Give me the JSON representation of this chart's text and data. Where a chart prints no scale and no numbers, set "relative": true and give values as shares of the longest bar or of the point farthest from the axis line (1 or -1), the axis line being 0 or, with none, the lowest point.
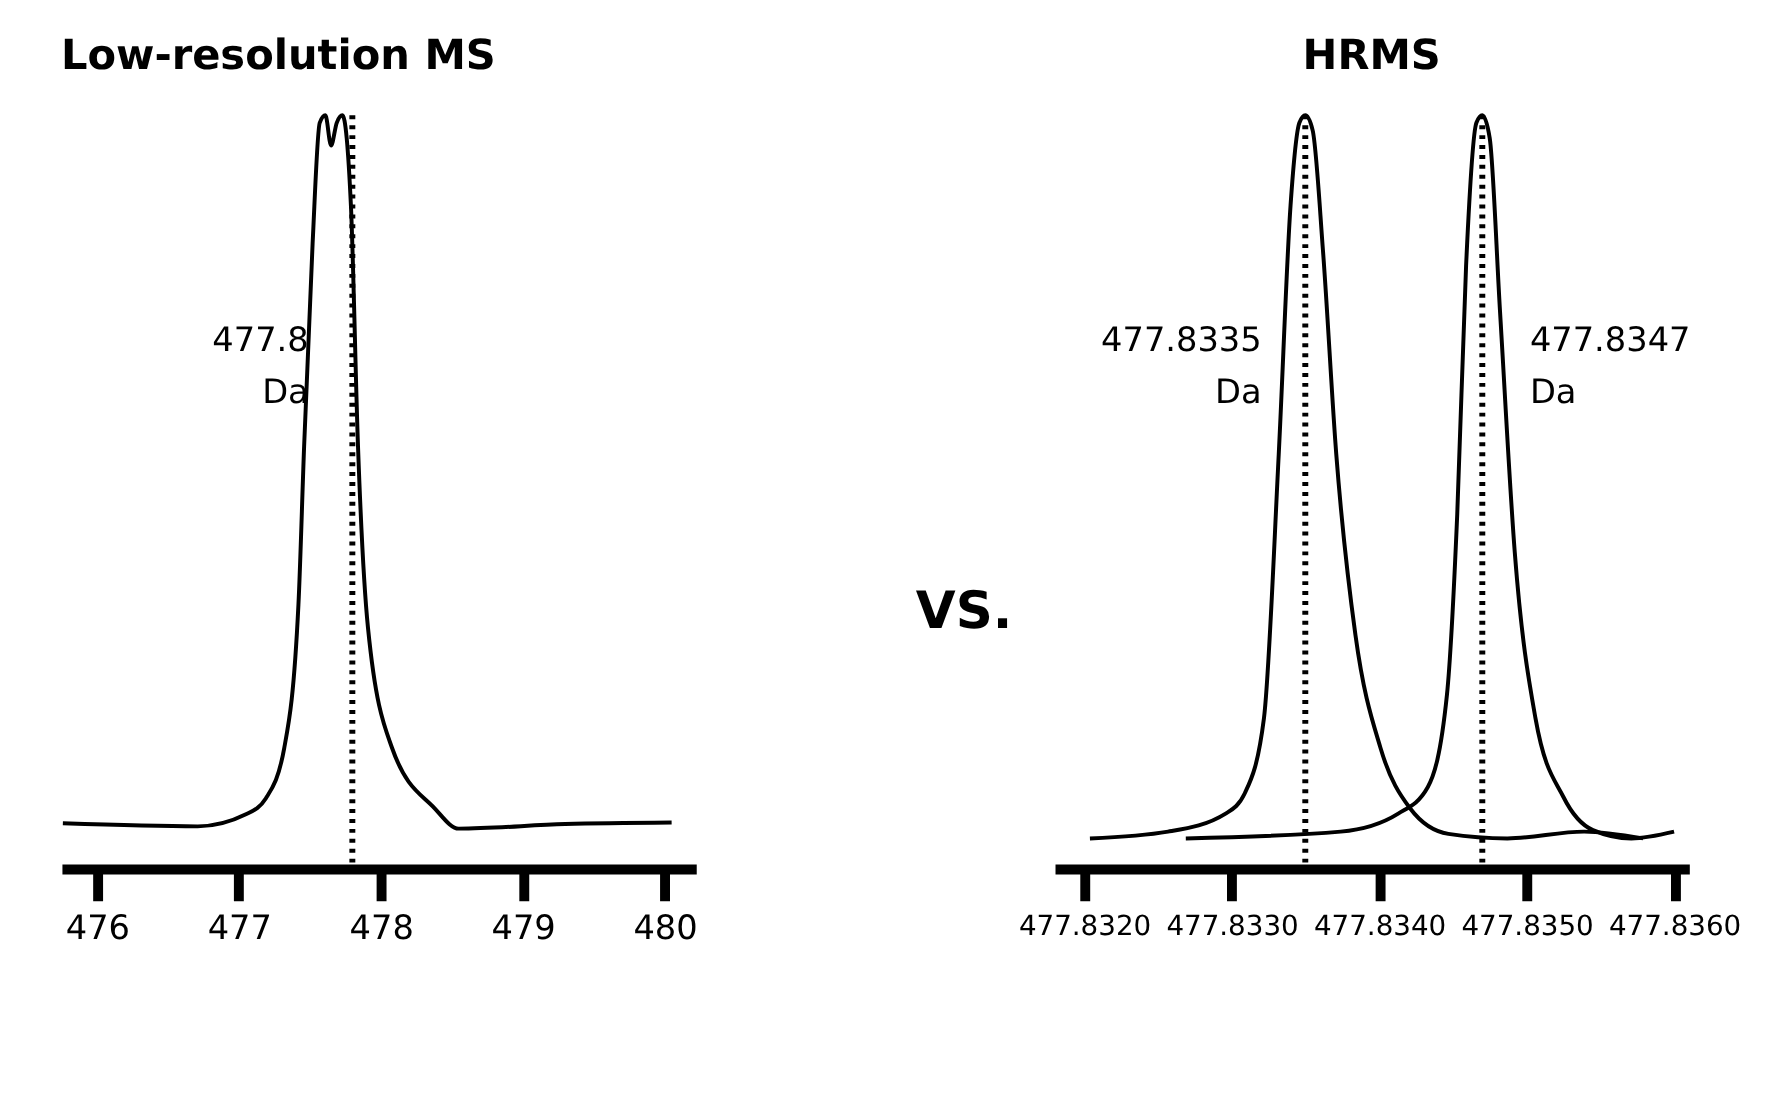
{
  "chart_data": [
    {
      "type": "line",
      "title": "Low-resolution MS",
      "relative": true,
      "grid": false,
      "xlim": [
        475.75,
        480.22
      ],
      "xticks": [
        476,
        477,
        478,
        479,
        480
      ],
      "series": [
        {
          "color": "#000000",
          "x": [
            475.76,
            476.71,
            477.05,
            477.19,
            477.32,
            477.42,
            477.46,
            477.52,
            477.57,
            477.61,
            477.65,
            477.69,
            477.73,
            477.79,
            477.84,
            477.91,
            478.08,
            478.38,
            478.55,
            479.3,
            480.05
          ],
          "values": [
            0.06,
            0.056,
            0.072,
            0.093,
            0.16,
            0.35,
            0.56,
            0.83,
            0.99,
            1.0,
            0.96,
            0.99,
            1.0,
            0.88,
            0.56,
            0.32,
            0.16,
            0.08,
            0.053,
            0.059,
            0.061
          ]
        }
      ],
      "ref_lines": [
        {
          "axis": "x",
          "value": 477.8,
          "label": "477.8 Da",
          "line_style": "dotted",
          "color": "#000000"
        }
      ]
    },
    {
      "type": "line",
      "title": "HRMS",
      "relative": true,
      "grid": false,
      "xlim": [
        477.8318,
        477.8361
      ],
      "xticks": [
        {
          "value": 477.832,
          "label": "477.8320"
        },
        {
          "value": 477.833,
          "label": "477.8330"
        },
        {
          "value": 477.834,
          "label": "477.8340"
        },
        {
          "value": 477.835,
          "label": "477.8350"
        },
        {
          "value": 477.836,
          "label": "477.8360"
        }
      ],
      "series": [
        {
          "color": "#000000",
          "x": [
            477.83204,
            477.83257,
            477.83296,
            477.83309,
            477.83322,
            477.83332,
            477.8334,
            477.83346,
            477.8335,
            477.83355,
            477.83362,
            477.83371,
            477.83384,
            477.83401,
            477.83421,
            477.83447,
            477.83487,
            477.83539,
            477.83579
          ],
          "values": [
            0.04,
            0.049,
            0.073,
            0.1,
            0.2,
            0.55,
            0.88,
            0.99,
            1.0,
            0.98,
            0.82,
            0.55,
            0.31,
            0.16,
            0.08,
            0.046,
            0.04,
            0.049,
            0.04
          ]
        },
        {
          "color": "#000000",
          "x": [
            477.83269,
            477.83374,
            477.83413,
            477.83433,
            477.83446,
            477.83453,
            477.83459,
            477.83466,
            477.8347,
            477.83475,
            477.83482,
            477.83492,
            477.83506,
            477.83525,
            477.83545,
            477.83571,
            477.836
          ],
          "values": [
            0.04,
            0.049,
            0.073,
            0.108,
            0.23,
            0.47,
            0.8,
            0.99,
            1.0,
            0.97,
            0.74,
            0.42,
            0.2,
            0.095,
            0.051,
            0.04,
            0.049
          ]
        }
      ],
      "ref_lines": [
        {
          "axis": "x",
          "value": 477.8335,
          "label": "477.8335 Da",
          "line_style": "dotted",
          "color": "#000000"
        },
        {
          "axis": "x",
          "value": 477.8347,
          "label": "477.8347 Da",
          "line_style": "dotted",
          "color": "#000000"
        }
      ],
      "annotations": [
        "VS."
      ]
    }
  ]
}
